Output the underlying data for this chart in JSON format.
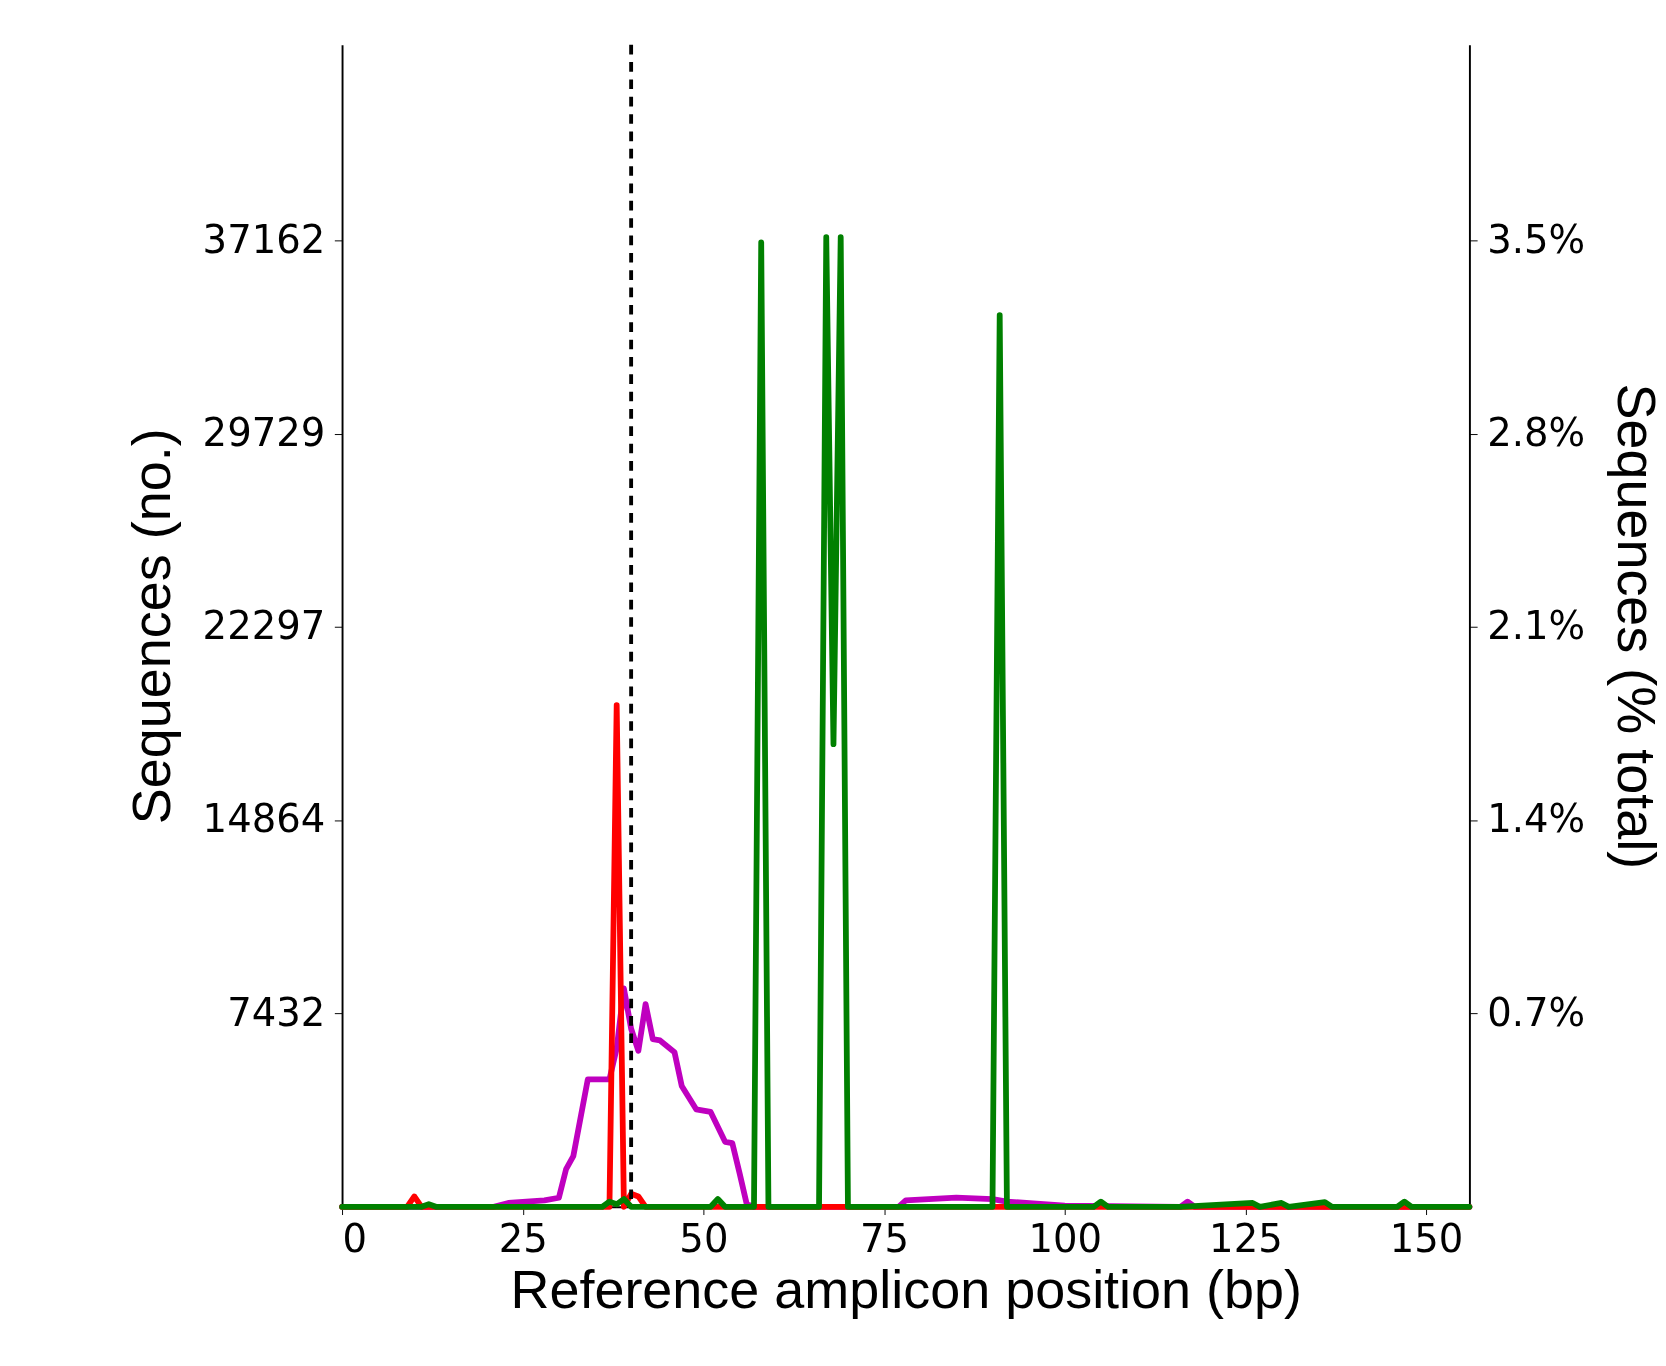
{
  "chart_data": {
    "type": "line",
    "xlabel": "Reference amplicon position (bp)",
    "ylabel": "Sequences (no.)",
    "y2label": "Sequences (% total)",
    "xlim": [
      0,
      156
    ],
    "xticks": [
      0,
      25,
      50,
      75,
      100,
      125,
      150
    ],
    "ylim": [
      0,
      44700
    ],
    "yticks": [
      7432,
      14864,
      22297,
      29729,
      37162
    ],
    "y2lim": [
      0,
      4.21
    ],
    "y2ticks": [
      {
        "value": 0.7,
        "label": "0.7%"
      },
      {
        "value": 1.4,
        "label": "1.4%"
      },
      {
        "value": 2.1,
        "label": "2.1%"
      },
      {
        "value": 2.8,
        "label": "2.8%"
      },
      {
        "value": 3.5,
        "label": "3.5%"
      }
    ],
    "grid": false,
    "line_style": "solid",
    "marker": "none",
    "series": [
      {
        "color": "#bf00bf",
        "x": [
          0,
          21,
          23,
          28,
          30,
          31,
          32,
          34,
          37,
          38,
          39,
          40,
          41,
          42,
          43,
          44,
          46,
          47,
          49,
          51,
          53,
          54,
          55,
          56,
          57,
          77,
          78,
          85,
          90,
          92,
          100,
          116,
          117,
          118,
          156
        ],
        "values": [
          0,
          0,
          150,
          250,
          350,
          1450,
          1950,
          4900,
          4900,
          6100,
          8400,
          6850,
          6000,
          7800,
          6450,
          6400,
          5950,
          4650,
          3750,
          3650,
          2500,
          2450,
          1300,
          100,
          0,
          0,
          250,
          350,
          300,
          200,
          50,
          0,
          200,
          0,
          0
        ]
      },
      {
        "color": "#ff0000",
        "x": [
          0,
          9,
          10,
          11,
          37,
          38,
          39,
          40,
          41,
          42,
          156
        ],
        "values": [
          0,
          0,
          400,
          0,
          0,
          19300,
          0,
          500,
          400,
          0,
          0
        ]
      },
      {
        "color": "#008000",
        "x": [
          0,
          11,
          12,
          13,
          36,
          37,
          38,
          39,
          40,
          51,
          52,
          53,
          57,
          58,
          59,
          66,
          67,
          68,
          69,
          70,
          90,
          91,
          92,
          104,
          105,
          106,
          116,
          126,
          127,
          130,
          131,
          136,
          137,
          146,
          147,
          148,
          156
        ],
        "values": [
          0,
          0,
          100,
          0,
          0,
          200,
          100,
          300,
          0,
          0,
          300,
          0,
          0,
          37100,
          0,
          0,
          37300,
          17800,
          37300,
          0,
          0,
          34300,
          0,
          0,
          200,
          0,
          0,
          150,
          0,
          150,
          0,
          180,
          0,
          0,
          200,
          0,
          0
        ]
      }
    ],
    "ref_lines": [
      {
        "axis": "x",
        "value": 40,
        "color": "#000000",
        "line_style": "dashed"
      }
    ]
  }
}
